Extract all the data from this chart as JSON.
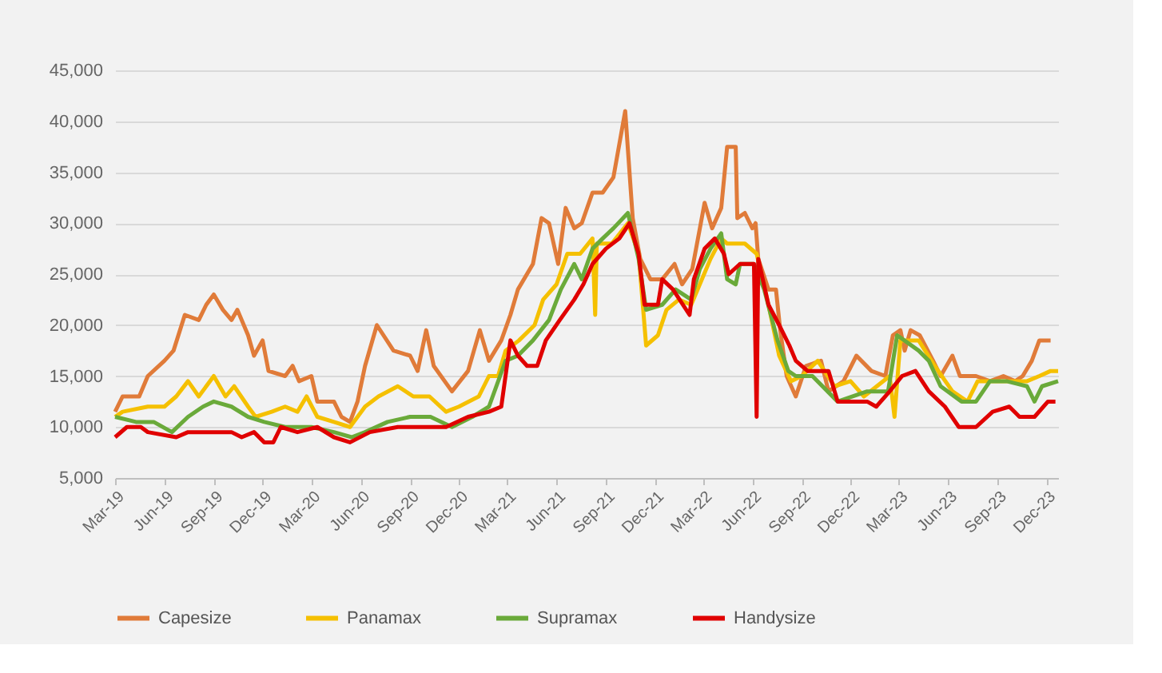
{
  "chart_data": {
    "type": "line",
    "ylim": [
      5000,
      45000
    ],
    "yticks": [
      {
        "value": 5000,
        "label": "5,000"
      },
      {
        "value": 10000,
        "label": "10,000"
      },
      {
        "value": 15000,
        "label": "15,000"
      },
      {
        "value": 20000,
        "label": "20,000"
      },
      {
        "value": 25000,
        "label": "25,000"
      },
      {
        "value": 30000,
        "label": "30,000"
      },
      {
        "value": 35000,
        "label": "35,000"
      },
      {
        "value": 40000,
        "label": "40,000"
      },
      {
        "value": 45000,
        "label": "45,000"
      }
    ],
    "xlim": [
      "2019-03-01",
      "2023-12-23"
    ],
    "xticks": [
      {
        "value": "2019-03-01",
        "label": "Mar-19"
      },
      {
        "value": "2019-06-01",
        "label": "Jun-19"
      },
      {
        "value": "2019-09-01",
        "label": "Sep-19"
      },
      {
        "value": "2019-12-01",
        "label": "Dec-19"
      },
      {
        "value": "2020-03-01",
        "label": "Mar-20"
      },
      {
        "value": "2020-06-01",
        "label": "Jun-20"
      },
      {
        "value": "2020-09-01",
        "label": "Sep-20"
      },
      {
        "value": "2020-12-01",
        "label": "Dec-20"
      },
      {
        "value": "2021-03-01",
        "label": "Mar-21"
      },
      {
        "value": "2021-06-01",
        "label": "Jun-21"
      },
      {
        "value": "2021-09-01",
        "label": "Sep-21"
      },
      {
        "value": "2021-12-01",
        "label": "Dec-21"
      },
      {
        "value": "2022-03-01",
        "label": "Mar-22"
      },
      {
        "value": "2022-06-01",
        "label": "Jun-22"
      },
      {
        "value": "2022-09-01",
        "label": "Sep-22"
      },
      {
        "value": "2022-12-01",
        "label": "Dec-22"
      },
      {
        "value": "2023-03-01",
        "label": "Mar-23"
      },
      {
        "value": "2023-06-01",
        "label": "Jun-23"
      },
      {
        "value": "2023-09-01",
        "label": "Sep-23"
      },
      {
        "value": "2023-12-01",
        "label": "Dec-23"
      }
    ],
    "grid": "y",
    "legend": "bottom",
    "marker": "none",
    "line_style": "solid",
    "series": [
      {
        "name": "Capesize",
        "color": "#e07b39",
        "x": [
          "2019-03-01",
          "2019-03-15",
          "2019-04-15",
          "2019-05-01",
          "2019-06-01",
          "2019-06-18",
          "2019-07-09",
          "2019-08-04",
          "2019-08-18",
          "2019-09-01",
          "2019-09-18",
          "2019-10-04",
          "2019-10-15",
          "2019-11-04",
          "2019-11-15",
          "2019-12-01",
          "2019-12-12",
          "2020-01-12",
          "2020-01-26",
          "2020-02-07",
          "2020-03-01",
          "2020-03-12",
          "2020-04-12",
          "2020-04-26",
          "2020-05-12",
          "2020-05-26",
          "2020-06-09",
          "2020-07-01",
          "2020-08-01",
          "2020-09-01",
          "2020-09-15",
          "2020-10-01",
          "2020-10-15",
          "2020-11-18",
          "2020-12-18",
          "2021-01-09",
          "2021-01-26",
          "2021-02-18",
          "2021-03-07",
          "2021-03-21",
          "2021-04-18",
          "2021-05-04",
          "2021-05-18",
          "2021-06-04",
          "2021-06-18",
          "2021-07-04",
          "2021-07-18",
          "2021-08-07",
          "2021-08-26",
          "2021-09-15",
          "2021-10-07",
          "2021-10-21",
          "2021-11-04",
          "2021-11-23",
          "2021-12-15",
          "2022-01-07",
          "2022-01-21",
          "2022-02-09",
          "2022-03-04",
          "2022-03-18",
          "2022-04-04",
          "2022-04-15",
          "2022-05-01",
          "2022-05-04",
          "2022-05-18",
          "2022-06-01",
          "2022-06-07",
          "2022-06-12",
          "2022-07-01",
          "2022-07-15",
          "2022-07-23",
          "2022-08-04",
          "2022-08-21",
          "2022-09-09",
          "2022-10-07",
          "2022-10-21",
          "2022-11-18",
          "2022-12-12",
          "2023-01-09",
          "2023-02-04",
          "2023-02-18",
          "2023-03-04",
          "2023-03-12",
          "2023-03-23",
          "2023-04-09",
          "2023-05-04",
          "2023-05-18",
          "2023-06-09",
          "2023-06-23",
          "2023-07-23",
          "2023-08-18",
          "2023-09-12",
          "2023-10-04",
          "2023-10-18",
          "2023-11-04",
          "2023-11-18",
          "2023-12-09"
        ],
        "values": [
          11500,
          13000,
          13000,
          15000,
          16500,
          17500,
          21000,
          20500,
          22000,
          23000,
          21500,
          20500,
          21500,
          19000,
          17000,
          18500,
          15500,
          15000,
          16000,
          14500,
          15000,
          12500,
          12500,
          11000,
          10500,
          12500,
          16000,
          20000,
          17500,
          17000,
          15500,
          19500,
          16000,
          13500,
          15500,
          19500,
          16500,
          18500,
          21000,
          23500,
          26000,
          30500,
          30000,
          26000,
          31500,
          29500,
          30000,
          33000,
          33000,
          34500,
          41000,
          30500,
          26500,
          24500,
          24500,
          26000,
          24000,
          25500,
          32000,
          29500,
          31500,
          37500,
          37500,
          30500,
          31000,
          29500,
          30000,
          26500,
          23500,
          23500,
          19500,
          15000,
          13000,
          16000,
          16500,
          13500,
          14500,
          17000,
          15500,
          15000,
          19000,
          19500,
          17500,
          19500,
          19000,
          16500,
          15000,
          17000,
          15000,
          15000,
          14500,
          15000,
          14500,
          15000,
          16500,
          18500,
          18500
        ]
      },
      {
        "name": "Panamax",
        "color": "#f5c000",
        "x": [
          "2019-03-01",
          "2019-03-15",
          "2019-05-01",
          "2019-06-01",
          "2019-06-23",
          "2019-07-15",
          "2019-08-04",
          "2019-09-01",
          "2019-09-23",
          "2019-10-09",
          "2019-11-04",
          "2019-11-18",
          "2019-12-18",
          "2020-01-12",
          "2020-02-04",
          "2020-02-21",
          "2020-03-12",
          "2020-04-12",
          "2020-05-12",
          "2020-06-09",
          "2020-07-04",
          "2020-08-09",
          "2020-09-07",
          "2020-10-07",
          "2020-11-07",
          "2020-12-01",
          "2021-01-07",
          "2021-01-26",
          "2021-02-12",
          "2021-02-26",
          "2021-03-23",
          "2021-04-21",
          "2021-05-07",
          "2021-06-01",
          "2021-06-21",
          "2021-07-15",
          "2021-08-07",
          "2021-08-12",
          "2021-08-15",
          "2021-09-12",
          "2021-10-12",
          "2021-11-01",
          "2021-11-15",
          "2021-12-07",
          "2021-12-23",
          "2022-01-15",
          "2022-02-07",
          "2022-02-23",
          "2022-03-15",
          "2022-04-04",
          "2022-04-15",
          "2022-05-18",
          "2022-06-09",
          "2022-07-01",
          "2022-07-21",
          "2022-08-12",
          "2022-09-01",
          "2022-10-01",
          "2022-11-01",
          "2022-12-01",
          "2022-12-26",
          "2023-02-12",
          "2023-02-21",
          "2023-03-04",
          "2023-04-07",
          "2023-05-07",
          "2023-06-09",
          "2023-07-07",
          "2023-07-26",
          "2023-09-18",
          "2023-10-26",
          "2023-11-18",
          "2023-12-09",
          "2023-12-23"
        ],
        "values": [
          11000,
          11500,
          12000,
          12000,
          13000,
          14500,
          13000,
          15000,
          13000,
          14000,
          12000,
          11000,
          11500,
          12000,
          11500,
          13000,
          11000,
          10500,
          10000,
          12000,
          13000,
          14000,
          13000,
          13000,
          11500,
          12000,
          13000,
          15000,
          15000,
          17500,
          18500,
          20000,
          22500,
          24000,
          27000,
          27000,
          28500,
          21000,
          28000,
          28000,
          30000,
          27000,
          18000,
          19000,
          21500,
          22500,
          22000,
          24000,
          26500,
          28500,
          28000,
          28000,
          27000,
          22000,
          17000,
          14500,
          15000,
          16500,
          14000,
          14500,
          13000,
          15000,
          11000,
          18500,
          18500,
          16000,
          13500,
          12500,
          14500,
          14500,
          14500,
          15000,
          15500,
          15500
        ]
      },
      {
        "name": "Supramax",
        "color": "#6aaa3a",
        "x": [
          "2019-03-01",
          "2019-04-09",
          "2019-05-12",
          "2019-06-15",
          "2019-07-15",
          "2019-08-12",
          "2019-09-01",
          "2019-10-04",
          "2019-11-04",
          "2019-12-04",
          "2020-01-12",
          "2020-03-01",
          "2020-04-12",
          "2020-05-15",
          "2020-06-09",
          "2020-07-21",
          "2020-09-01",
          "2020-10-09",
          "2020-11-18",
          "2020-12-26",
          "2021-01-26",
          "2021-02-26",
          "2021-03-21",
          "2021-04-18",
          "2021-05-18",
          "2021-06-09",
          "2021-07-04",
          "2021-07-18",
          "2021-08-07",
          "2021-08-26",
          "2021-09-15",
          "2021-10-12",
          "2021-11-01",
          "2021-11-15",
          "2021-12-15",
          "2022-01-09",
          "2022-02-07",
          "2022-02-23",
          "2022-03-15",
          "2022-04-04",
          "2022-04-15",
          "2022-05-01",
          "2022-05-09",
          "2022-06-04",
          "2022-06-23",
          "2022-07-18",
          "2022-08-07",
          "2022-08-21",
          "2022-09-21",
          "2022-11-07",
          "2023-01-01",
          "2023-02-09",
          "2023-02-26",
          "2023-04-07",
          "2023-04-26",
          "2023-05-18",
          "2023-06-26",
          "2023-07-23",
          "2023-08-18",
          "2023-09-18",
          "2023-10-26",
          "2023-11-09",
          "2023-11-23",
          "2023-12-23"
        ],
        "values": [
          11000,
          10500,
          10500,
          9500,
          11000,
          12000,
          12500,
          12000,
          11000,
          10500,
          10000,
          10000,
          9500,
          9000,
          9500,
          10500,
          11000,
          11000,
          10000,
          11000,
          12000,
          16500,
          17000,
          18500,
          20500,
          23500,
          26000,
          24500,
          27500,
          28500,
          29500,
          31000,
          26500,
          21500,
          22000,
          23500,
          22500,
          25500,
          27500,
          29000,
          24500,
          24000,
          26000,
          26000,
          23500,
          18500,
          15500,
          15000,
          15000,
          12500,
          13500,
          13500,
          19000,
          17500,
          16500,
          14000,
          12500,
          12500,
          14500,
          14500,
          14000,
          12500,
          14000,
          14500
        ]
      },
      {
        "name": "Handysize",
        "color": "#e00000",
        "x": [
          "2019-03-01",
          "2019-03-23",
          "2019-04-18",
          "2019-05-01",
          "2019-06-23",
          "2019-07-15",
          "2019-08-23",
          "2019-10-04",
          "2019-10-23",
          "2019-11-15",
          "2019-12-04",
          "2019-12-21",
          "2020-01-04",
          "2020-02-04",
          "2020-03-12",
          "2020-04-12",
          "2020-05-12",
          "2020-06-18",
          "2020-08-09",
          "2020-11-07",
          "2020-12-18",
          "2021-01-26",
          "2021-02-18",
          "2021-03-07",
          "2021-03-21",
          "2021-04-07",
          "2021-04-26",
          "2021-05-12",
          "2021-06-07",
          "2021-07-04",
          "2021-07-21",
          "2021-08-07",
          "2021-09-01",
          "2021-09-26",
          "2021-10-15",
          "2021-11-01",
          "2021-11-12",
          "2021-12-07",
          "2021-12-15",
          "2022-01-04",
          "2022-02-04",
          "2022-02-12",
          "2022-03-04",
          "2022-03-23",
          "2022-04-09",
          "2022-04-18",
          "2022-05-09",
          "2022-06-04",
          "2022-06-09",
          "2022-06-12",
          "2022-07-01",
          "2022-07-21",
          "2022-08-09",
          "2022-08-21",
          "2022-09-12",
          "2022-10-21",
          "2022-11-07",
          "2023-01-01",
          "2023-01-18",
          "2023-02-12",
          "2023-03-07",
          "2023-04-01",
          "2023-04-26",
          "2023-05-26",
          "2023-06-21",
          "2023-07-23",
          "2023-08-23",
          "2023-09-23",
          "2023-10-12",
          "2023-11-09",
          "2023-12-04",
          "2023-12-18"
        ],
        "values": [
          9000,
          10000,
          10000,
          9500,
          9000,
          9500,
          9500,
          9500,
          9000,
          9500,
          8500,
          8500,
          10000,
          9500,
          10000,
          9000,
          8500,
          9500,
          10000,
          10000,
          11000,
          11500,
          12000,
          18500,
          17000,
          16000,
          16000,
          18500,
          20500,
          22500,
          24000,
          26000,
          27500,
          28500,
          30000,
          27000,
          22000,
          22000,
          24500,
          23500,
          21000,
          24500,
          27500,
          28500,
          27000,
          25000,
          26000,
          26000,
          11000,
          26500,
          22000,
          20000,
          18000,
          16500,
          15500,
          15500,
          12500,
          12500,
          12000,
          13500,
          15000,
          15500,
          13500,
          12000,
          10000,
          10000,
          11500,
          12000,
          11000,
          11000,
          12500,
          12500
        ]
      }
    ]
  }
}
